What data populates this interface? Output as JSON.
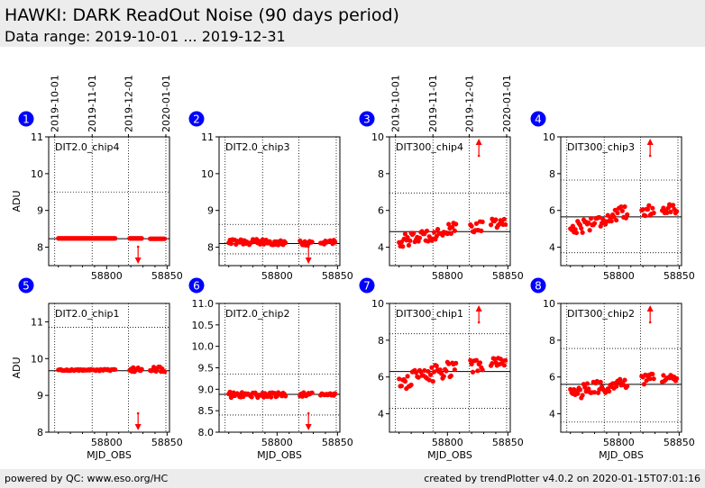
{
  "header": {
    "title": "HAWKI: DARK ReadOut Noise (90 days period)",
    "subtitle": "Data range: 2019-10-01 ... 2019-12-31"
  },
  "footer": {
    "left": "powered by QC: www.eso.org/HC",
    "right": "created by trendPlotter v4.0.2 on 2020-01-15T07:01:16"
  },
  "colors": {
    "points": "#ff0000",
    "badge": "#0000ff",
    "axes": "#000000"
  },
  "chart_data": [
    {
      "type": "scatter",
      "id": 1,
      "label": "DIT2.0_chip4",
      "ylabel": "ADU",
      "xlabel": "",
      "ylim": [
        7.5,
        11
      ],
      "yticks": [
        "8",
        "9",
        "10",
        "11"
      ],
      "xticks": [
        "58800",
        "58850"
      ],
      "date_ticks": [
        "2019-10-01",
        "2019-11-01",
        "2019-12-01",
        "2020-01-01"
      ],
      "mean": 8.23,
      "limits": [
        9.5
      ],
      "arrow": {
        "x": 58826,
        "dir": "down"
      },
      "segments": [
        {
          "x0": 58760,
          "x1": 58807,
          "y": 8.24,
          "jitter": 0.0
        },
        {
          "x0": 58819,
          "x1": 58829,
          "y": 8.24,
          "jitter": 0.0
        },
        {
          "x0": 58836,
          "x1": 58848,
          "y": 8.23,
          "jitter": 0.0
        }
      ]
    },
    {
      "type": "scatter",
      "id": 2,
      "label": "DIT2.0_chip3",
      "ylabel": "",
      "xlabel": "",
      "ylim": [
        7.5,
        11
      ],
      "yticks": [
        "8",
        "9",
        "10",
        "11"
      ],
      "xticks": [
        "58800",
        "58850"
      ],
      "date_ticks": [],
      "mean": 8.1,
      "limits": [
        8.62,
        7.82
      ],
      "arrow": {
        "x": 58826,
        "dir": "down"
      },
      "segments": [
        {
          "x0": 58760,
          "x1": 58807,
          "y": 8.14,
          "jitter": 0.08
        },
        {
          "x0": 58819,
          "x1": 58829,
          "y": 8.12,
          "jitter": 0.07
        },
        {
          "x0": 58836,
          "x1": 58848,
          "y": 8.13,
          "jitter": 0.08
        }
      ]
    },
    {
      "type": "scatter",
      "id": 3,
      "label": "DIT300_chip4",
      "ylabel": "",
      "xlabel": "",
      "ylim": [
        3,
        10
      ],
      "yticks": [
        "4",
        "6",
        "8",
        "10"
      ],
      "xticks": [
        "58800",
        "58850"
      ],
      "date_ticks": [
        "2019-10-01",
        "2019-11-01",
        "2019-12-01",
        "2020-01-01"
      ],
      "mean": 4.85,
      "limits": [
        6.95
      ],
      "arrow": {
        "x": 58826,
        "dir": "up"
      },
      "segments": [
        {
          "x0": 58760,
          "x1": 58807,
          "y0": 4.3,
          "y1": 5.0,
          "jitter": 0.35
        },
        {
          "x0": 58819,
          "x1": 58829,
          "y": 5.1,
          "jitter": 0.3
        },
        {
          "x0": 58836,
          "x1": 58848,
          "y": 5.3,
          "jitter": 0.25
        }
      ]
    },
    {
      "type": "scatter",
      "id": 4,
      "label": "DIT300_chip3",
      "ylabel": "",
      "xlabel": "",
      "ylim": [
        3,
        10
      ],
      "yticks": [
        "4",
        "6",
        "8",
        "10"
      ],
      "xticks": [
        "58800",
        "58850"
      ],
      "date_ticks": [],
      "mean": 5.65,
      "limits": [
        7.65,
        3.7
      ],
      "arrow": {
        "x": 58826,
        "dir": "up"
      },
      "segments": [
        {
          "x0": 58760,
          "x1": 58807,
          "y0": 5.0,
          "y1": 5.9,
          "jitter": 0.4
        },
        {
          "x0": 58819,
          "x1": 58829,
          "y": 6.0,
          "jitter": 0.3
        },
        {
          "x0": 58836,
          "x1": 58848,
          "y": 6.1,
          "jitter": 0.25
        }
      ]
    },
    {
      "type": "scatter",
      "id": 5,
      "label": "DIT2.0_chip1",
      "ylabel": "ADU",
      "xlabel": "MJD_OBS",
      "ylim": [
        8,
        11.5
      ],
      "yticks": [
        "8",
        "9",
        "10",
        "11"
      ],
      "xticks": [
        "58800",
        "58850"
      ],
      "date_ticks": [],
      "mean": 9.67,
      "limits": [
        10.85
      ],
      "arrow": {
        "x": 58826,
        "dir": "down"
      },
      "segments": [
        {
          "x0": 58760,
          "x1": 58807,
          "y": 9.69,
          "jitter": 0.02
        },
        {
          "x0": 58819,
          "x1": 58829,
          "y": 9.7,
          "jitter": 0.06
        },
        {
          "x0": 58836,
          "x1": 58848,
          "y": 9.72,
          "jitter": 0.08
        }
      ]
    },
    {
      "type": "scatter",
      "id": 6,
      "label": "DIT2.0_chip2",
      "ylabel": "",
      "xlabel": "MJD_OBS",
      "ylim": [
        8,
        11
      ],
      "yticks": [
        "8.0",
        "8.5",
        "9.0",
        "9.5",
        "10.0",
        "10.5",
        "11.0"
      ],
      "xticks": [
        "58800",
        "58850"
      ],
      "date_ticks": [],
      "mean": 8.88,
      "limits": [
        9.35,
        8.4
      ],
      "arrow": {
        "x": 58826,
        "dir": "down"
      },
      "segments": [
        {
          "x0": 58760,
          "x1": 58807,
          "y": 8.87,
          "jitter": 0.07
        },
        {
          "x0": 58819,
          "x1": 58829,
          "y": 8.88,
          "jitter": 0.05
        },
        {
          "x0": 58836,
          "x1": 58848,
          "y": 8.88,
          "jitter": 0.03
        }
      ]
    },
    {
      "type": "scatter",
      "id": 7,
      "label": "DIT300_chip1",
      "ylabel": "",
      "xlabel": "MJD_OBS",
      "ylim": [
        3,
        10
      ],
      "yticks": [
        "4",
        "6",
        "8",
        "10"
      ],
      "xticks": [
        "58800",
        "58850"
      ],
      "date_ticks": [],
      "mean": 6.3,
      "limits": [
        8.35,
        4.3
      ],
      "arrow": {
        "x": 58826,
        "dir": "up"
      },
      "segments": [
        {
          "x0": 58760,
          "x1": 58807,
          "y0": 5.7,
          "y1": 6.5,
          "jitter": 0.45
        },
        {
          "x0": 58819,
          "x1": 58829,
          "y": 6.6,
          "jitter": 0.35
        },
        {
          "x0": 58836,
          "x1": 58848,
          "y": 6.8,
          "jitter": 0.25
        }
      ]
    },
    {
      "type": "scatter",
      "id": 8,
      "label": "DIT300_chip2",
      "ylabel": "",
      "xlabel": "MJD_OBS",
      "ylim": [
        3,
        10
      ],
      "yticks": [
        "4",
        "6",
        "8",
        "10"
      ],
      "xticks": [
        "58800",
        "58850"
      ],
      "date_ticks": [],
      "mean": 5.6,
      "limits": [
        7.55,
        3.55
      ],
      "arrow": {
        "x": 58826,
        "dir": "up"
      },
      "segments": [
        {
          "x0": 58760,
          "x1": 58807,
          "y0": 5.1,
          "y1": 5.7,
          "jitter": 0.4
        },
        {
          "x0": 58819,
          "x1": 58829,
          "y": 5.9,
          "jitter": 0.3
        },
        {
          "x0": 58836,
          "x1": 58848,
          "y": 5.9,
          "jitter": 0.2
        }
      ]
    }
  ]
}
